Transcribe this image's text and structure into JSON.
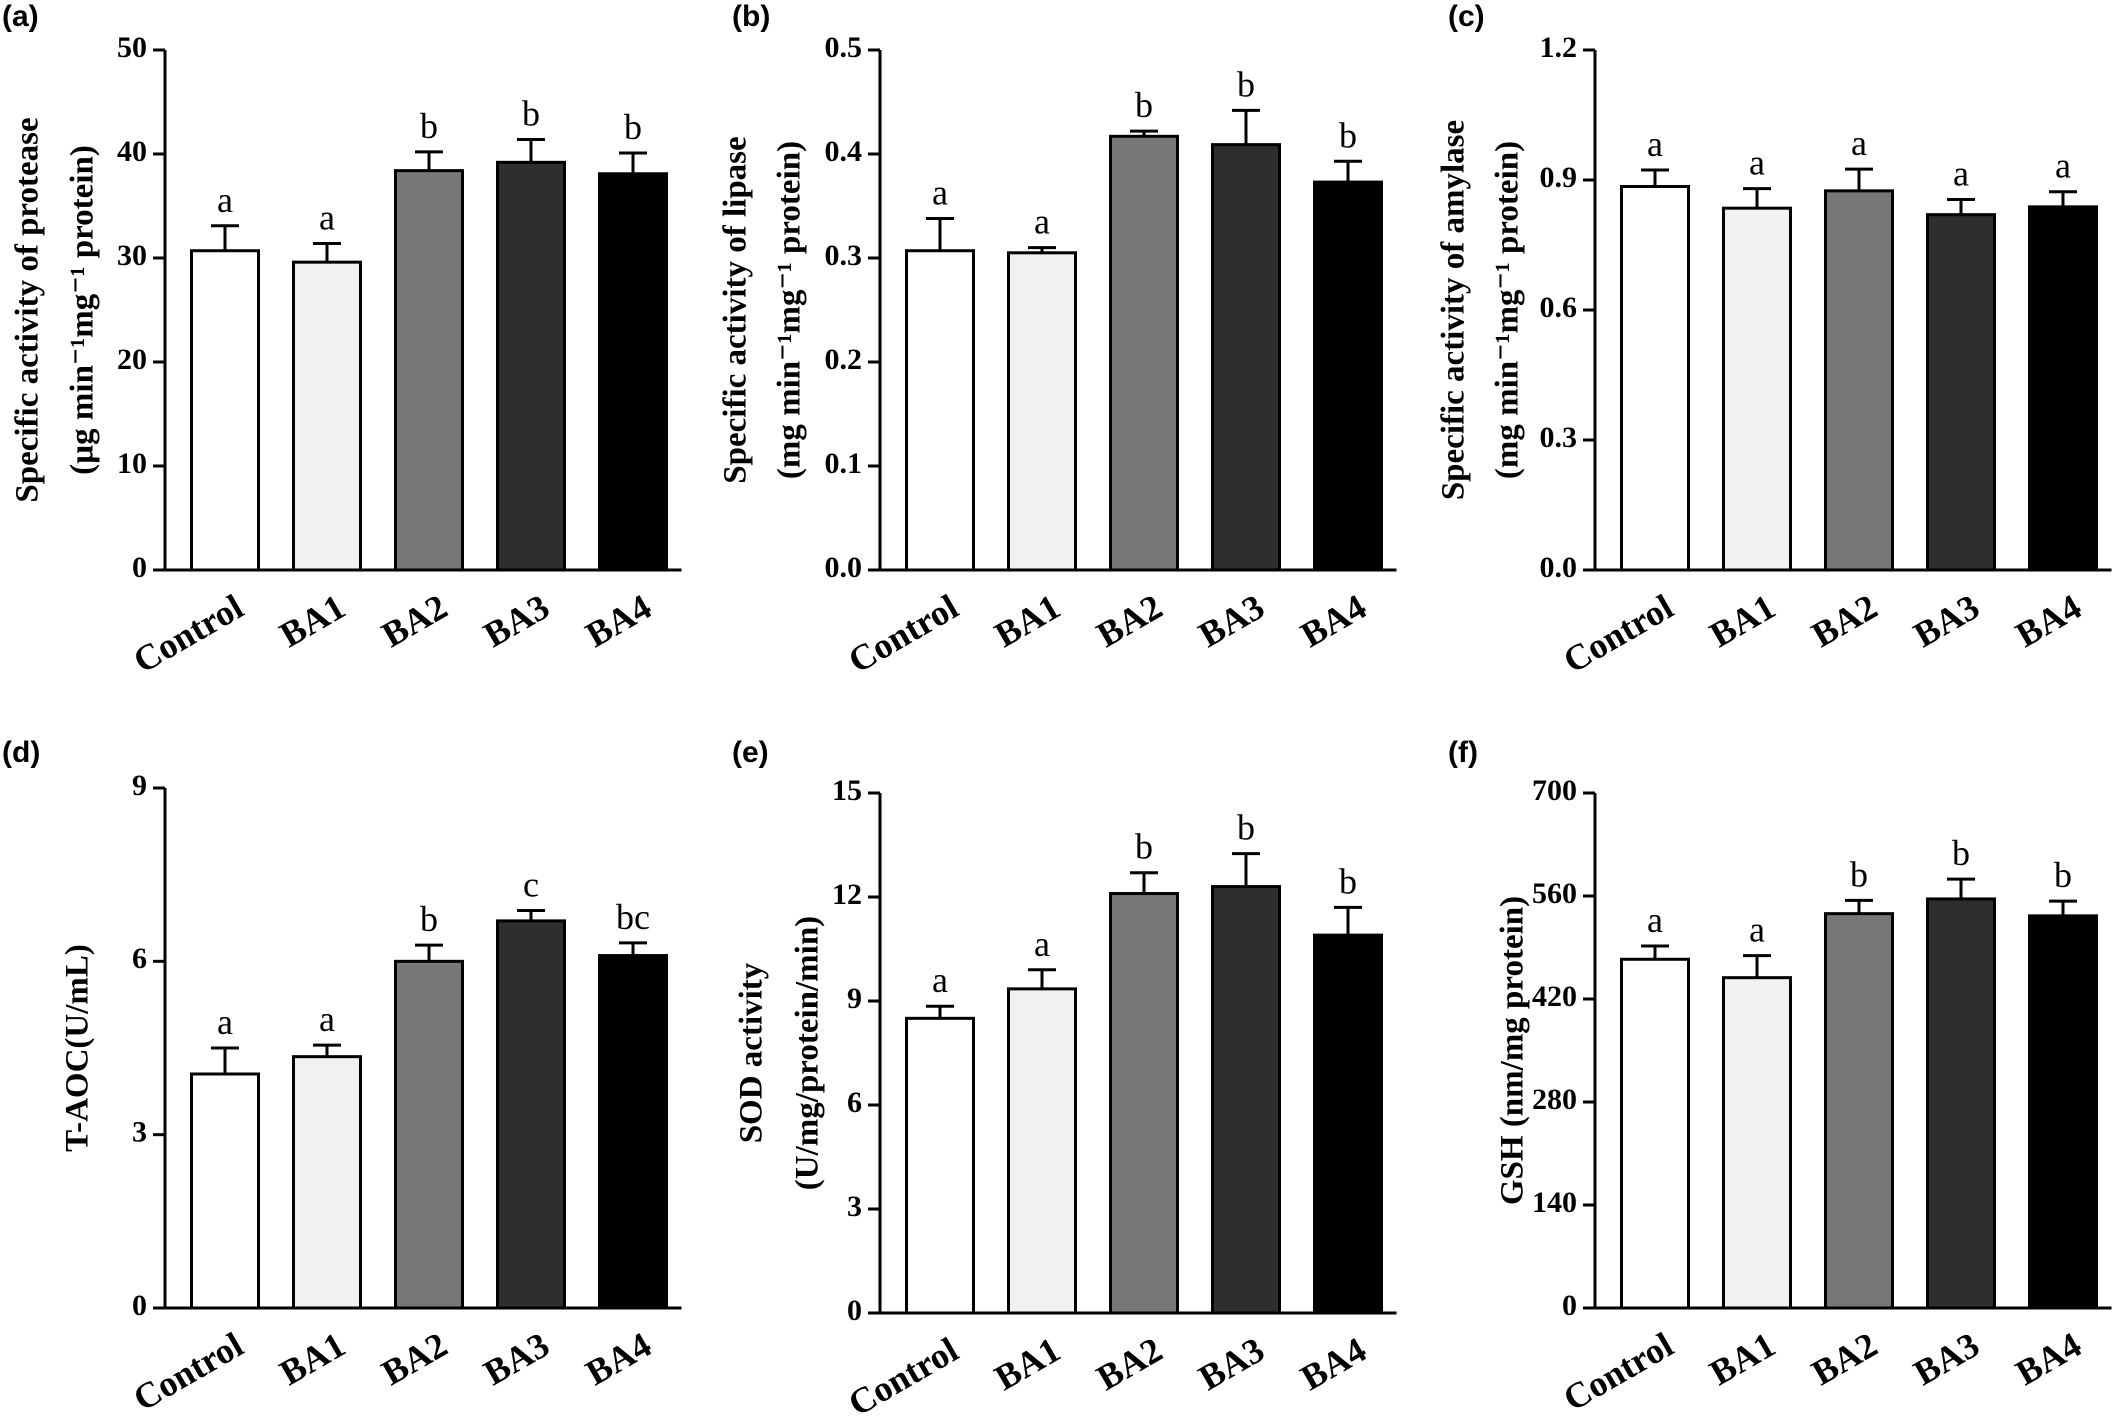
{
  "chart_data": [
    {
      "type": "bar",
      "panel": "(a)",
      "categories": [
        "Control",
        "BA1",
        "BA2",
        "BA3",
        "BA4"
      ],
      "values": [
        30.7,
        29.6,
        38.4,
        39.2,
        38.1
      ],
      "errors": [
        2.4,
        1.8,
        1.8,
        2.2,
        2.0
      ],
      "letters": [
        "a",
        "a",
        "b",
        "b",
        "b"
      ],
      "colors": [
        "#ffffff",
        "#f1f1f1",
        "#777777",
        "#2e2e2e",
        "#000000"
      ],
      "ylabel_lines": [
        "Specific activity of protease",
        "(µg min⁻¹mg⁻¹ protein)"
      ],
      "ylim": [
        0,
        50
      ],
      "yticks": [
        0,
        10,
        20,
        30,
        40,
        50
      ],
      "ytick_labels": [
        "0",
        "10",
        "20",
        "30",
        "40",
        "50"
      ]
    },
    {
      "type": "bar",
      "panel": "(b)",
      "categories": [
        "Control",
        "BA1",
        "BA2",
        "BA3",
        "BA4"
      ],
      "values": [
        0.307,
        0.305,
        0.417,
        0.409,
        0.373
      ],
      "errors": [
        0.031,
        0.005,
        0.005,
        0.033,
        0.02
      ],
      "letters": [
        "a",
        "a",
        "b",
        "b",
        "b"
      ],
      "colors": [
        "#ffffff",
        "#f1f1f1",
        "#777777",
        "#2e2e2e",
        "#000000"
      ],
      "ylabel_lines": [
        "Specific activity of lipase",
        "(mg min⁻¹mg⁻¹ protein)"
      ],
      "ylim": [
        0,
        0.5
      ],
      "yticks": [
        0,
        0.1,
        0.2,
        0.3,
        0.4,
        0.5
      ],
      "ytick_labels": [
        "0.0",
        "0.1",
        "0.2",
        "0.3",
        "0.4",
        "0.5"
      ]
    },
    {
      "type": "bar",
      "panel": "(c)",
      "categories": [
        "Control",
        "BA1",
        "BA2",
        "BA3",
        "BA4"
      ],
      "values": [
        0.885,
        0.835,
        0.875,
        0.82,
        0.838
      ],
      "errors": [
        0.038,
        0.045,
        0.05,
        0.035,
        0.035
      ],
      "letters": [
        "a",
        "a",
        "a",
        "a",
        "a"
      ],
      "colors": [
        "#ffffff",
        "#f1f1f1",
        "#777777",
        "#2e2e2e",
        "#000000"
      ],
      "ylabel_lines": [
        "Specific activity of amylase",
        "(mg min⁻¹mg⁻¹ protein)"
      ],
      "ylim": [
        0,
        1.2
      ],
      "yticks": [
        0,
        0.3,
        0.6,
        0.9,
        1.2
      ],
      "ytick_labels": [
        "0.0",
        "0.3",
        "0.6",
        "0.9",
        "1.2"
      ]
    },
    {
      "type": "bar",
      "panel": "(d)",
      "categories": [
        "Control",
        "BA1",
        "BA2",
        "BA3",
        "BA4"
      ],
      "values": [
        4.05,
        4.35,
        6.0,
        6.7,
        6.1
      ],
      "errors": [
        0.45,
        0.2,
        0.28,
        0.18,
        0.22
      ],
      "letters": [
        "a",
        "a",
        "b",
        "c",
        "bc"
      ],
      "colors": [
        "#ffffff",
        "#f1f1f1",
        "#777777",
        "#2e2e2e",
        "#000000"
      ],
      "ylabel_lines": [
        "T-AOC(U/mL)"
      ],
      "ylim": [
        0,
        9
      ],
      "yticks": [
        0,
        3,
        6,
        9
      ],
      "ytick_labels": [
        "0",
        "3",
        "6",
        "9"
      ]
    },
    {
      "type": "bar",
      "panel": "(e)",
      "categories": [
        "Control",
        "BA1",
        "BA2",
        "BA3",
        "BA4"
      ],
      "values": [
        8.5,
        9.35,
        12.1,
        12.3,
        10.9
      ],
      "errors": [
        0.35,
        0.55,
        0.6,
        0.95,
        0.8
      ],
      "letters": [
        "a",
        "a",
        "b",
        "b",
        "b"
      ],
      "colors": [
        "#ffffff",
        "#f1f1f1",
        "#777777",
        "#2e2e2e",
        "#000000"
      ],
      "ylabel_lines": [
        "SOD activity",
        "(U/mg/protein/min)"
      ],
      "ylim": [
        0,
        15
      ],
      "yticks": [
        0,
        3,
        6,
        9,
        12,
        15
      ],
      "ytick_labels": [
        "0",
        "3",
        "6",
        "9",
        "12",
        "15"
      ]
    },
    {
      "type": "bar",
      "panel": "(f)",
      "categories": [
        "Control",
        "BA1",
        "BA2",
        "BA3",
        "BA4"
      ],
      "values": [
        474,
        449,
        536,
        556,
        533
      ],
      "errors": [
        18,
        30,
        18,
        27,
        20
      ],
      "letters": [
        "a",
        "a",
        "b",
        "b",
        "b"
      ],
      "colors": [
        "#ffffff",
        "#f1f1f1",
        "#777777",
        "#2e2e2e",
        "#000000"
      ],
      "ylabel_lines": [
        "GSH (nm/mg protein)"
      ],
      "ylim": [
        0,
        700
      ],
      "yticks": [
        0,
        140,
        280,
        420,
        560,
        700
      ],
      "ytick_labels": [
        "0",
        "140",
        "280",
        "420",
        "560",
        "700"
      ]
    }
  ]
}
